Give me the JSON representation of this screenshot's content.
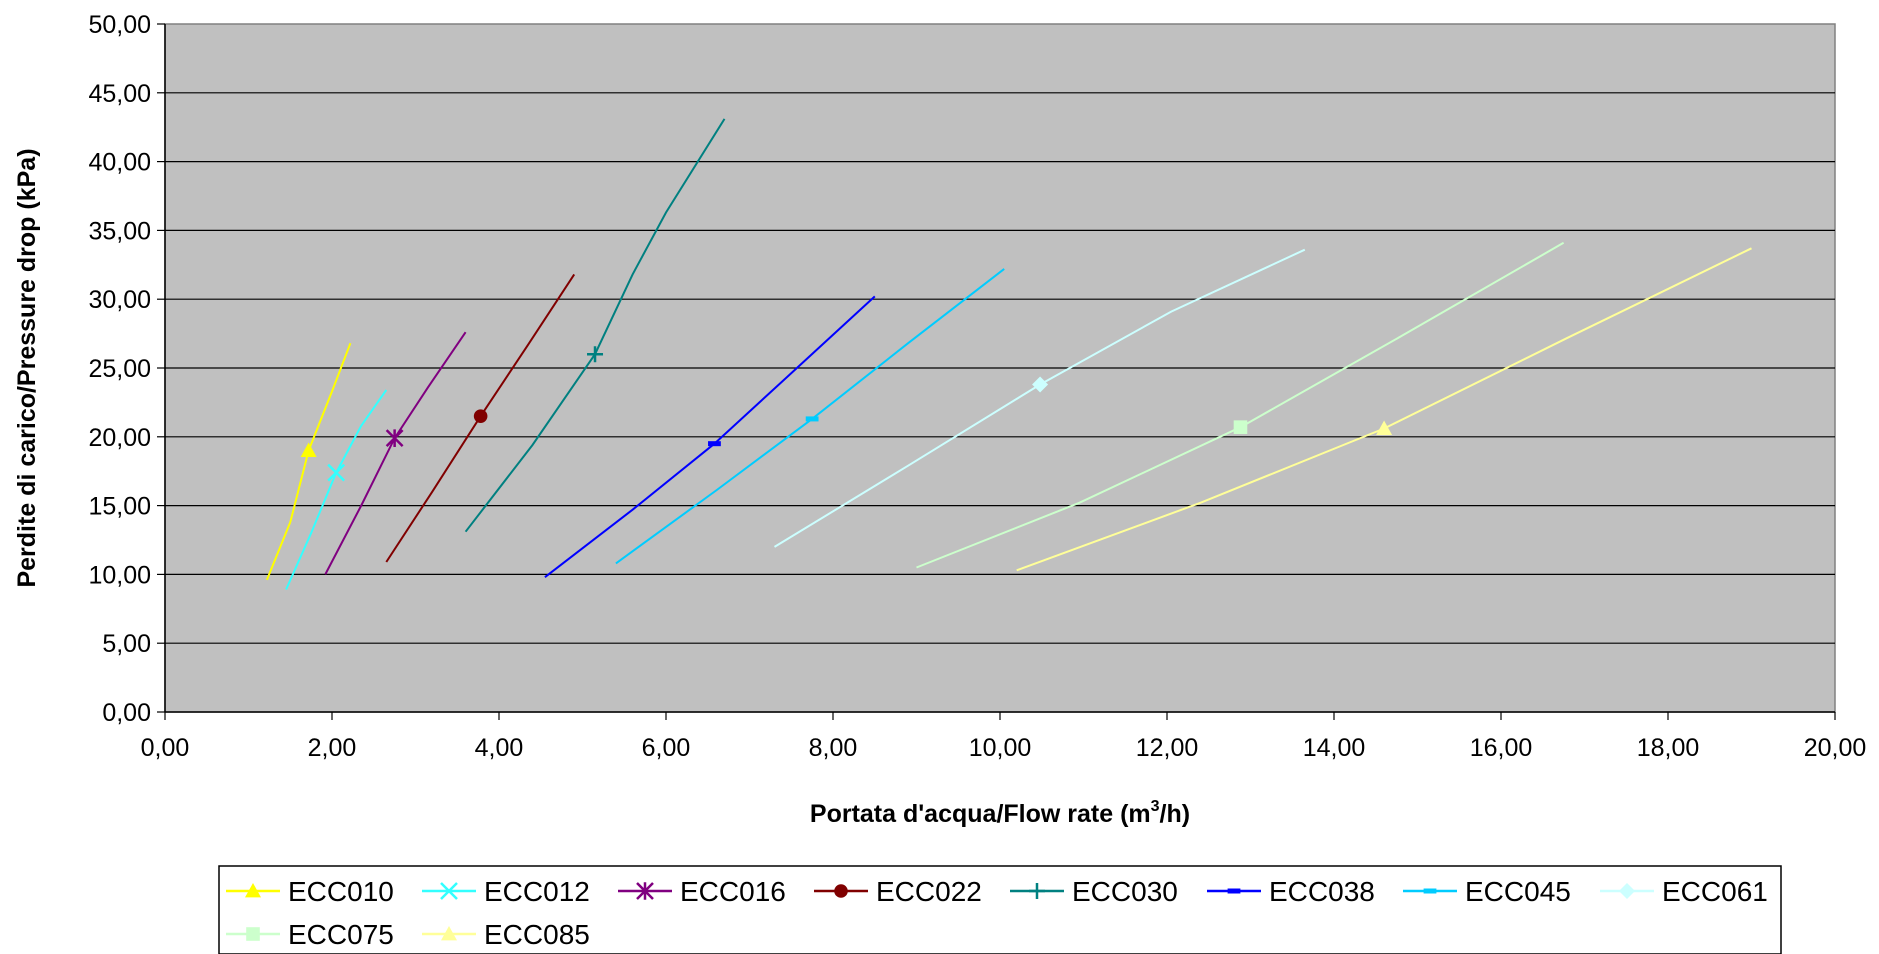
{
  "chart_data": {
    "type": "line",
    "title": "",
    "xlabel": "Portata d'acqua/Flow rate (m",
    "xlabel_sup": "3",
    "xlabel_tail": "/h)",
    "ylabel": "Perdite di carico/Pressure drop (kPa)",
    "xlim": [
      0,
      20
    ],
    "ylim": [
      0,
      50
    ],
    "x_ticks": [
      "0,00",
      "2,00",
      "4,00",
      "6,00",
      "8,00",
      "10,00",
      "12,00",
      "14,00",
      "16,00",
      "18,00",
      "20,00"
    ],
    "y_ticks": [
      "0,00",
      "5,00",
      "10,00",
      "15,00",
      "20,00",
      "25,00",
      "30,00",
      "35,00",
      "40,00",
      "45,00",
      "50,00"
    ],
    "grid": "horizontal",
    "plot_background": "#c0c0c0",
    "legend_position": "bottom",
    "series": [
      {
        "name": "ECC010",
        "color": "#ffff00",
        "marker": "triangle",
        "marker_point": [
          1.72,
          19.0
        ],
        "points": [
          [
            1.22,
            9.6
          ],
          [
            1.5,
            13.8
          ],
          [
            1.72,
            19.0
          ],
          [
            2.0,
            23.3
          ],
          [
            2.22,
            26.8
          ]
        ]
      },
      {
        "name": "ECC012",
        "color": "#33ffff",
        "marker": "x",
        "marker_point": [
          2.05,
          17.4
        ],
        "points": [
          [
            1.45,
            8.9
          ],
          [
            1.75,
            13.0
          ],
          [
            2.05,
            17.4
          ],
          [
            2.35,
            20.8
          ],
          [
            2.65,
            23.4
          ]
        ]
      },
      {
        "name": "ECC016",
        "color": "#800080",
        "marker": "asterisk",
        "marker_point": [
          2.75,
          19.9
        ],
        "points": [
          [
            1.92,
            10.0
          ],
          [
            2.35,
            15.0
          ],
          [
            2.75,
            19.9
          ],
          [
            3.15,
            23.6
          ],
          [
            3.6,
            27.6
          ]
        ]
      },
      {
        "name": "ECC022",
        "color": "#800000",
        "marker": "circle",
        "marker_point": [
          3.78,
          21.5
        ],
        "points": [
          [
            2.65,
            10.9
          ],
          [
            3.2,
            16.0
          ],
          [
            3.78,
            21.5
          ],
          [
            4.35,
            26.7
          ],
          [
            4.9,
            31.8
          ]
        ]
      },
      {
        "name": "ECC030",
        "color": "#008080",
        "marker": "plus",
        "marker_point": [
          5.15,
          26.0
        ],
        "points": [
          [
            3.6,
            13.1
          ],
          [
            4.4,
            19.4
          ],
          [
            5.15,
            26.0
          ],
          [
            5.6,
            31.8
          ],
          [
            6.0,
            36.3
          ],
          [
            6.7,
            43.1
          ]
        ]
      },
      {
        "name": "ECC038",
        "color": "#0000ff",
        "marker": "dash",
        "marker_point": [
          6.58,
          19.5
        ],
        "points": [
          [
            4.55,
            9.8
          ],
          [
            5.6,
            14.7
          ],
          [
            6.58,
            19.5
          ],
          [
            7.55,
            24.9
          ],
          [
            8.5,
            30.2
          ]
        ]
      },
      {
        "name": "ECC045",
        "color": "#00ccff",
        "marker": "dash",
        "marker_point": [
          7.75,
          21.3
        ],
        "points": [
          [
            5.4,
            10.8
          ],
          [
            6.6,
            16.1
          ],
          [
            7.75,
            21.3
          ],
          [
            8.9,
            26.8
          ],
          [
            10.05,
            32.2
          ]
        ]
      },
      {
        "name": "ECC061",
        "color": "#ccffff",
        "marker": "diamond",
        "marker_point": [
          10.48,
          23.8
        ],
        "points": [
          [
            7.3,
            12.0
          ],
          [
            8.9,
            17.9
          ],
          [
            10.48,
            23.8
          ],
          [
            12.05,
            29.1
          ],
          [
            13.65,
            33.6
          ]
        ]
      },
      {
        "name": "ECC075",
        "color": "#ccffcc",
        "marker": "square",
        "marker_point": [
          12.88,
          20.7
        ],
        "points": [
          [
            9.0,
            10.5
          ],
          [
            10.95,
            15.2
          ],
          [
            12.88,
            20.7
          ],
          [
            14.8,
            27.3
          ],
          [
            16.75,
            34.1
          ]
        ]
      },
      {
        "name": "ECC085",
        "color": "#ffff99",
        "marker": "triangle",
        "marker_point": [
          14.6,
          20.6
        ],
        "points": [
          [
            10.2,
            10.3
          ],
          [
            12.4,
            15.2
          ],
          [
            14.6,
            20.6
          ],
          [
            16.8,
            27.2
          ],
          [
            19.0,
            33.7
          ]
        ]
      }
    ]
  }
}
